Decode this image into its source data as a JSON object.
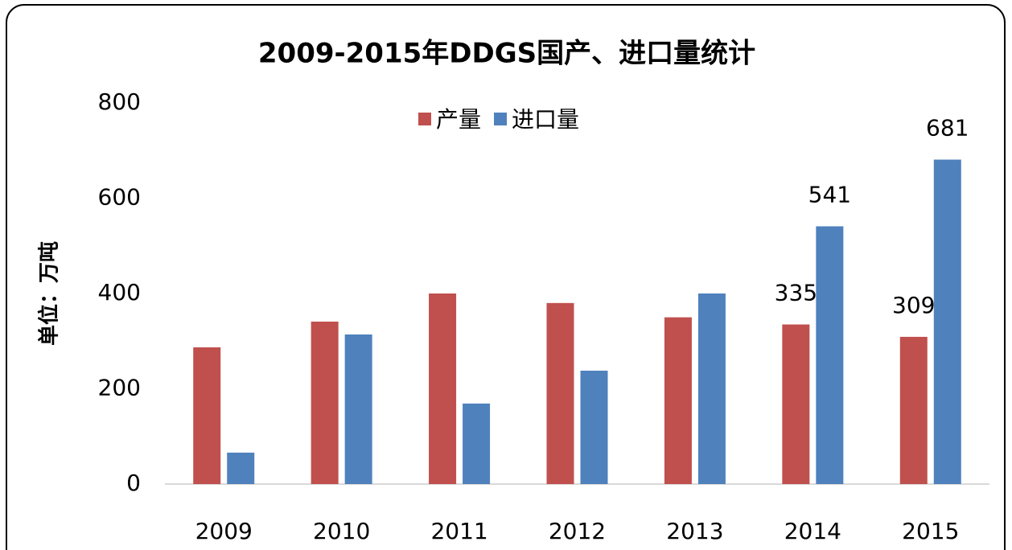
{
  "chart_data": {
    "type": "bar",
    "title": "2009-2015年DDGS国产、进口量统计",
    "y_label": "单位：万吨",
    "categories": [
      "2009",
      "2010",
      "2011",
      "2012",
      "2013",
      "2014",
      "2015"
    ],
    "series": [
      {
        "name": "产量",
        "color": "#c0504d",
        "values": [
          287,
          341,
          400,
          380,
          350,
          335,
          309
        ],
        "value_labels": [
          null,
          null,
          null,
          null,
          null,
          "335",
          "309"
        ]
      },
      {
        "name": "进口量",
        "color": "#4f81bd",
        "values": [
          66,
          314,
          169,
          238,
          400,
          541,
          681
        ],
        "value_labels": [
          null,
          null,
          null,
          null,
          null,
          "541",
          "681"
        ]
      }
    ],
    "ylim": [
      0,
      800
    ],
    "yticks": [
      0,
      200,
      400,
      600,
      800
    ],
    "grid": false,
    "legend": "top"
  }
}
